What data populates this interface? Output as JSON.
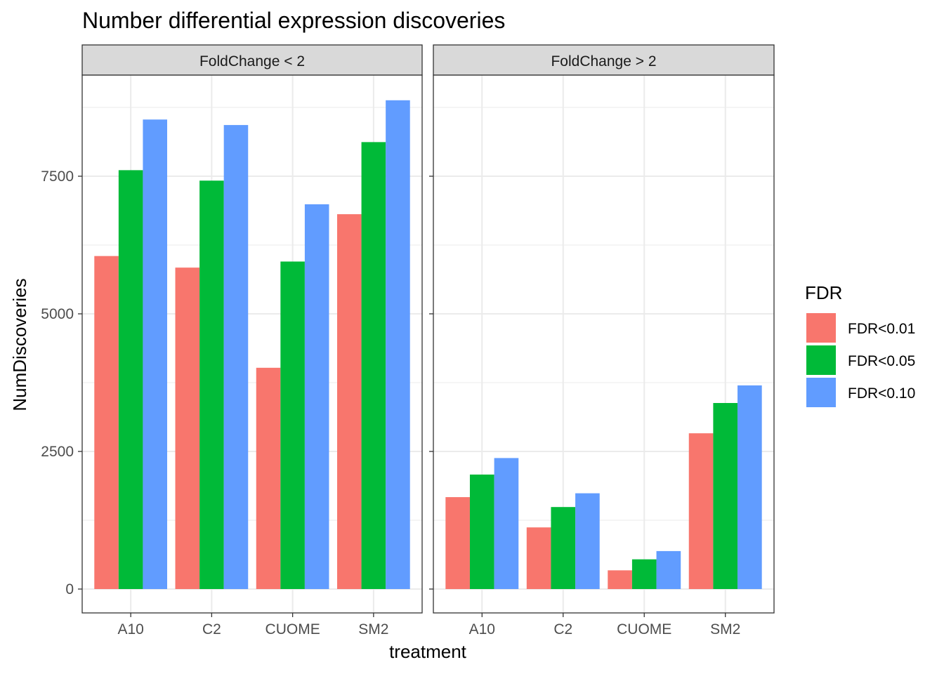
{
  "chart_data": {
    "type": "bar",
    "title": "Number differential expression discoveries",
    "xlabel": "treatment",
    "ylabel": "NumDiscoveries",
    "ylim": [
      -600,
      9400
    ],
    "yticks": [
      0,
      2500,
      5000,
      7500
    ],
    "ytick_labels": [
      "0",
      "2500",
      "5000",
      "7500"
    ],
    "grid": true,
    "categories": [
      "A10",
      "C2",
      "CUOME",
      "SM2"
    ],
    "legend": {
      "title": "FDR",
      "position": "right",
      "entries": [
        "FDR<0.01",
        "FDR<0.05",
        "FDR<0.10"
      ]
    },
    "series_colors": [
      "#F8766D",
      "#00BA38",
      "#619CFF"
    ],
    "facets": [
      {
        "label": "FoldChange < 2",
        "series": [
          {
            "name": "FDR<0.01",
            "values": [
              6050,
              5840,
              4020,
              6810
            ]
          },
          {
            "name": "FDR<0.05",
            "values": [
              7610,
              7420,
              5950,
              8120
            ]
          },
          {
            "name": "FDR<0.10",
            "values": [
              8530,
              8430,
              6990,
              8880
            ]
          }
        ]
      },
      {
        "label": "FoldChange > 2",
        "series": [
          {
            "name": "FDR<0.01",
            "values": [
              1670,
              1120,
              340,
              2830
            ]
          },
          {
            "name": "FDR<0.05",
            "values": [
              2080,
              1490,
              540,
              3380
            ]
          },
          {
            "name": "FDR<0.10",
            "values": [
              2380,
              1740,
              690,
              3700
            ]
          }
        ]
      }
    ]
  }
}
